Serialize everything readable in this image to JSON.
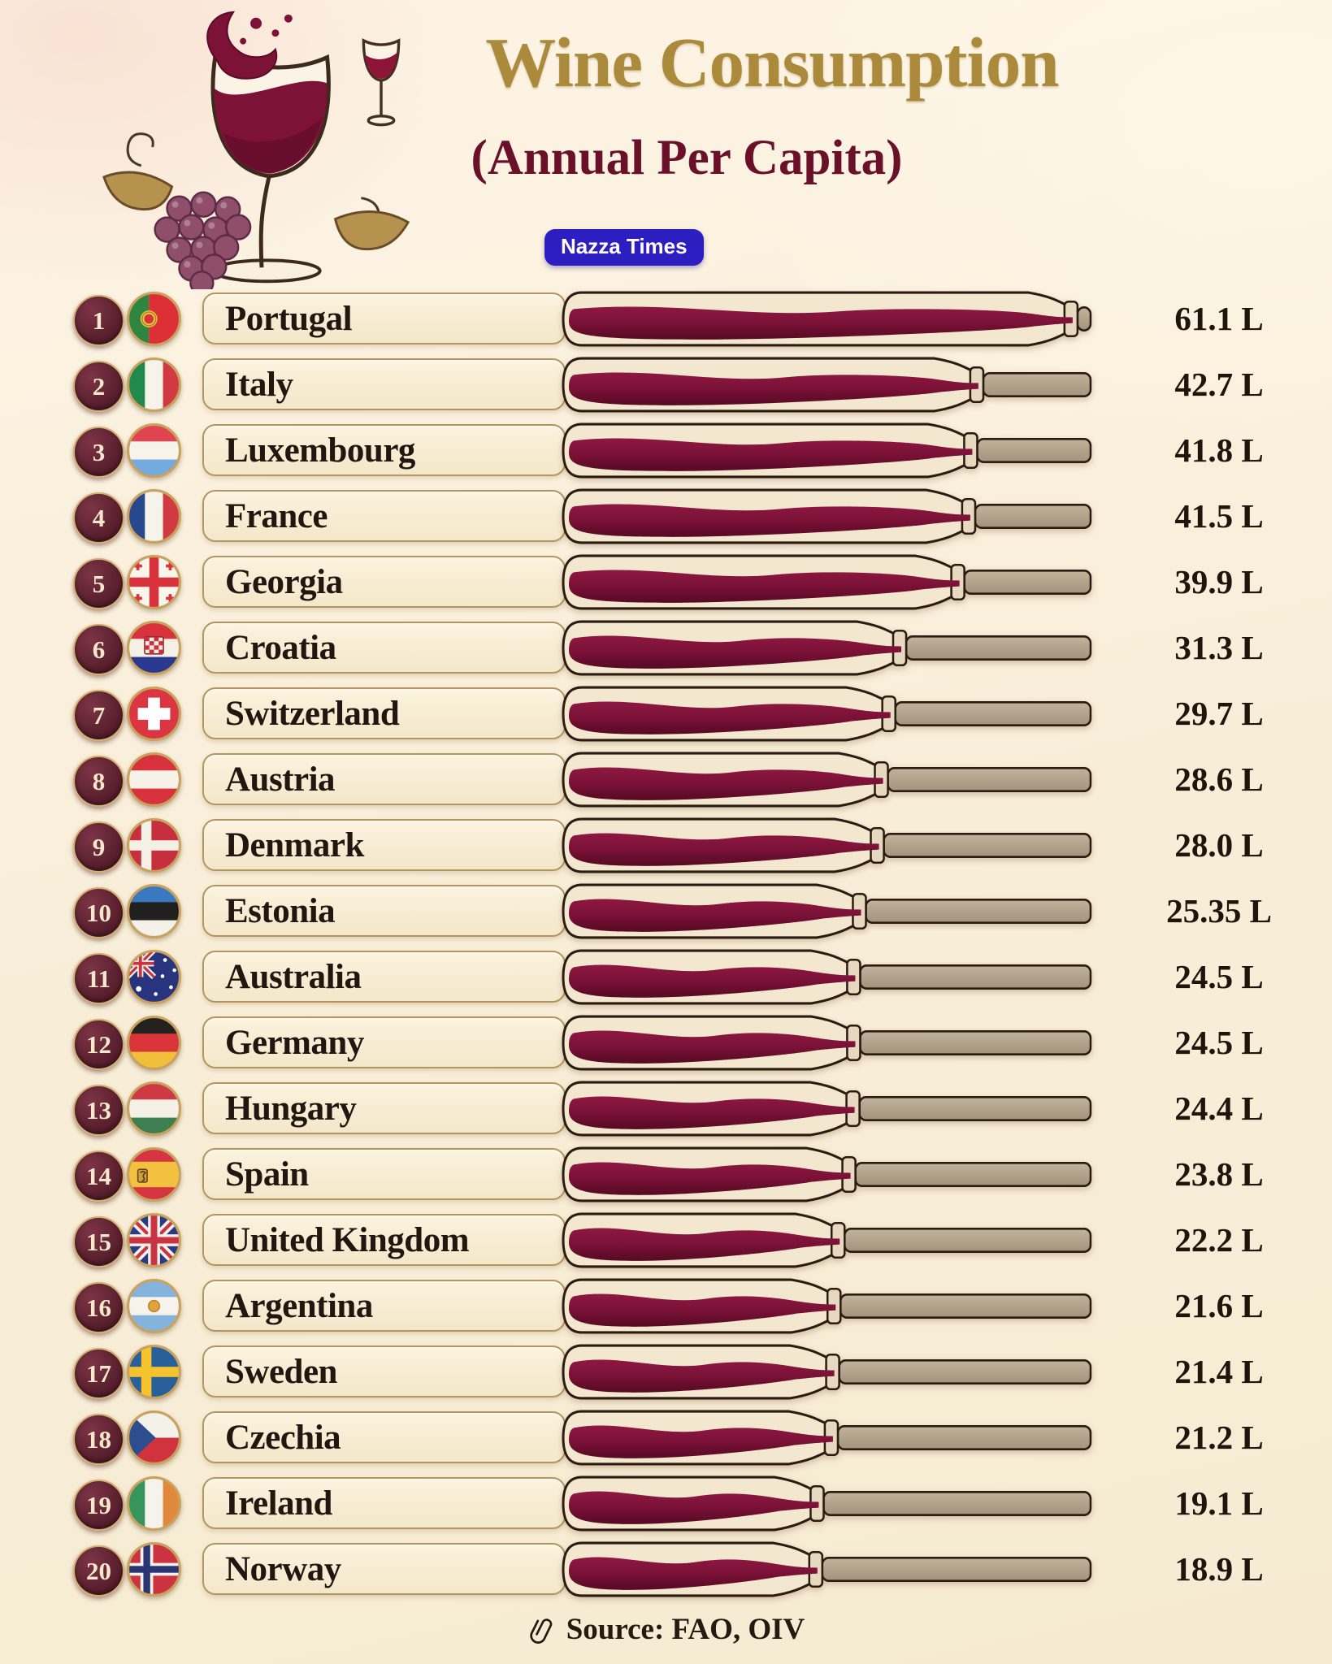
{
  "header": {
    "title": "Wine Consumption",
    "subtitle": "(Annual Per Capita)",
    "badge": "Nazza Times"
  },
  "footer": {
    "source": "Source: FAO, OIV"
  },
  "colors": {
    "background": "#f8efda",
    "title_gold": "#ac8a3c",
    "subtitle_maroon": "#6b1029",
    "badge_bg": "#2c1ec1",
    "badge_text": "#ffffff",
    "wine_top": "#8e1843",
    "wine_mid": "#7a1136",
    "wine_bottom": "#560a24",
    "bottle_body": "#f3e7cf",
    "bottle_outline": "#2b1b10",
    "neck": "#b2a48e",
    "collar": "#e6d9c0",
    "pill_border": "#b3965f",
    "rank_bg": "#5d2130",
    "rank_ring": "#d2ae6e",
    "flag_ring": "#c9a25f",
    "text_dark": "#20150d"
  },
  "chart_data": {
    "type": "bar",
    "title": "Wine Consumption",
    "subtitle": "(Annual Per Capita)",
    "unit": "L",
    "max_value": 61.1,
    "source": "FAO, OIV",
    "rows": [
      {
        "rank": 1,
        "country": "Portugal",
        "value": 61.1,
        "label": "61.1 L",
        "flag": "portugal"
      },
      {
        "rank": 2,
        "country": "Italy",
        "value": 42.7,
        "label": "42.7 L",
        "flag": "italy"
      },
      {
        "rank": 3,
        "country": "Luxembourg",
        "value": 41.8,
        "label": "41.8 L",
        "flag": "luxembourg"
      },
      {
        "rank": 4,
        "country": "France",
        "value": 41.5,
        "label": "41.5 L",
        "flag": "france"
      },
      {
        "rank": 5,
        "country": "Georgia",
        "value": 39.9,
        "label": "39.9 L",
        "flag": "georgia"
      },
      {
        "rank": 6,
        "country": "Croatia",
        "value": 31.3,
        "label": "31.3 L",
        "flag": "croatia"
      },
      {
        "rank": 7,
        "country": "Switzerland",
        "value": 29.7,
        "label": "29.7 L",
        "flag": "switzerland"
      },
      {
        "rank": 8,
        "country": "Austria",
        "value": 28.6,
        "label": "28.6 L",
        "flag": "austria"
      },
      {
        "rank": 9,
        "country": "Denmark",
        "value": 28.0,
        "label": "28.0 L",
        "flag": "denmark"
      },
      {
        "rank": 10,
        "country": "Estonia",
        "value": 25.35,
        "label": "25.35 L",
        "flag": "estonia"
      },
      {
        "rank": 11,
        "country": "Australia",
        "value": 24.5,
        "label": "24.5 L",
        "flag": "australia"
      },
      {
        "rank": 12,
        "country": "Germany",
        "value": 24.5,
        "label": "24.5 L",
        "flag": "germany"
      },
      {
        "rank": 13,
        "country": "Hungary",
        "value": 24.4,
        "label": "24.4 L",
        "flag": "hungary"
      },
      {
        "rank": 14,
        "country": "Spain",
        "value": 23.8,
        "label": "23.8 L",
        "flag": "spain"
      },
      {
        "rank": 15,
        "country": "United Kingdom",
        "value": 22.2,
        "label": "22.2 L",
        "flag": "uk"
      },
      {
        "rank": 16,
        "country": "Argentina",
        "value": 21.6,
        "label": "21.6 L",
        "flag": "argentina"
      },
      {
        "rank": 17,
        "country": "Sweden",
        "value": 21.4,
        "label": "21.4 L",
        "flag": "sweden"
      },
      {
        "rank": 18,
        "country": "Czechia",
        "value": 21.2,
        "label": "21.2 L",
        "flag": "czechia"
      },
      {
        "rank": 19,
        "country": "Ireland",
        "value": 19.1,
        "label": "19.1 L",
        "flag": "ireland"
      },
      {
        "rank": 20,
        "country": "Norway",
        "value": 18.9,
        "label": "18.9 L",
        "flag": "norway"
      }
    ]
  },
  "flags": {
    "portugal": {
      "type": "pt",
      "green": "#2e8540",
      "red": "#dd3036",
      "emblem": "#eec243",
      "emblem_inner": "#d8333a"
    },
    "italy": {
      "type": "v",
      "colors": [
        "#1f8a4c",
        "#f6f3ea",
        "#d13a40"
      ]
    },
    "luxembourg": {
      "type": "h",
      "colors": [
        "#e04450",
        "#f6f3ea",
        "#74aadd"
      ]
    },
    "france": {
      "type": "v",
      "colors": [
        "#27478f",
        "#f6f3ea",
        "#d13a40"
      ]
    },
    "georgia": {
      "type": "ge",
      "bg": "#f8f5ec",
      "cross": "#d8333a"
    },
    "croatia": {
      "type": "hr",
      "colors": [
        "#d8333c",
        "#f4f0e6",
        "#2b3890"
      ],
      "checker_red": "#c9303d",
      "checker_white": "#f2ece0"
    },
    "switzerland": {
      "type": "ch",
      "bg": "#da3540",
      "cross": "#ffffff"
    },
    "austria": {
      "type": "h",
      "colors": [
        "#d8323c",
        "#f6f2e8",
        "#d8323c"
      ]
    },
    "denmark": {
      "type": "nordic",
      "bg": "#c62f3e",
      "cross": "#f4f0e6"
    },
    "estonia": {
      "type": "h",
      "colors": [
        "#3a79c0",
        "#20201e",
        "#f4f1e8"
      ]
    },
    "australia": {
      "type": "au",
      "bg": "#28357e",
      "jack_white": "#f4f1e8",
      "jack_red": "#cc3340",
      "stars": "#ffffff"
    },
    "germany": {
      "type": "h",
      "colors": [
        "#23211e",
        "#d93438",
        "#f2bf3a"
      ]
    },
    "hungary": {
      "type": "h",
      "colors": [
        "#cd3a44",
        "#f5f1e6",
        "#3d7f51"
      ]
    },
    "spain": {
      "type": "es",
      "red": "#d53540",
      "yellow": "#f3c13f",
      "emblem": "#caa03c",
      "emblem_line": "#5a3418"
    },
    "uk": {
      "type": "uk",
      "blue": "#2b3a84",
      "white": "#f5f2ea",
      "red": "#c93342"
    },
    "argentina": {
      "type": "ar",
      "blue": "#84b4de",
      "white": "#f6f3ec",
      "sun": "#e2a23c"
    },
    "sweden": {
      "type": "nordic",
      "bg": "#2a6099",
      "cross": "#f5c32e"
    },
    "czechia": {
      "type": "cz",
      "white": "#f4f1e8",
      "red": "#d0333d",
      "blue": "#2d4d8e"
    },
    "ireland": {
      "type": "v",
      "colors": [
        "#35955c",
        "#f6f3ec",
        "#e0883c"
      ]
    },
    "norway": {
      "type": "no",
      "red": "#cc3340",
      "white": "#f4f1e8",
      "blue": "#2a3472"
    }
  }
}
